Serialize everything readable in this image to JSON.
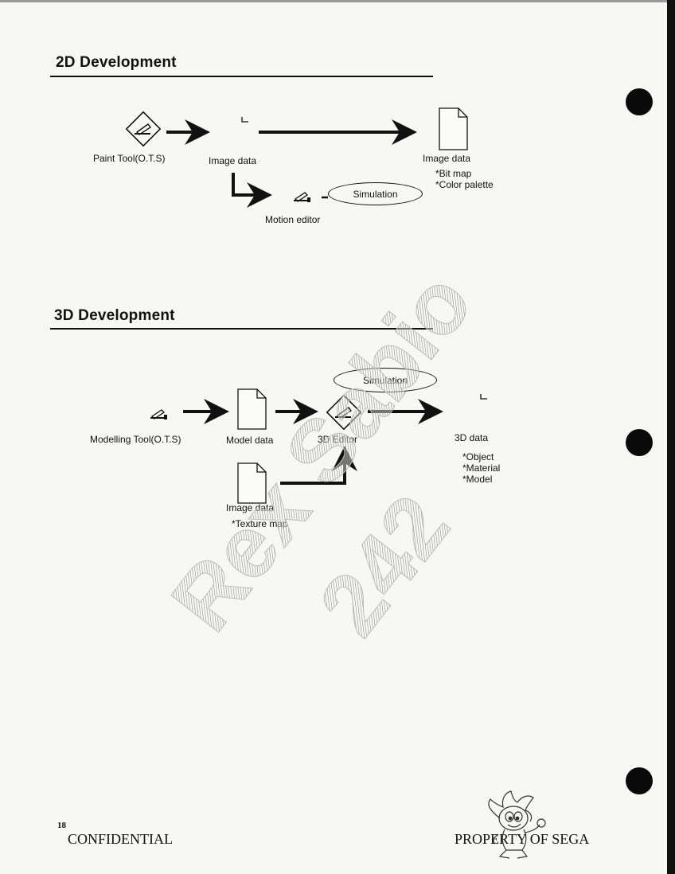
{
  "sections": {
    "dev2d": {
      "heading": "2D Development",
      "paint_tool": "Paint Tool(O.T.S)",
      "image_data_mid": "Image data",
      "image_data_out": "Image data",
      "image_data_notes": [
        "*Bit map",
        "*Color palette"
      ],
      "simulation": "Simulation",
      "motion_editor": "Motion editor"
    },
    "dev3d": {
      "heading": "3D Development",
      "modelling_tool": "Modelling Tool(O.T.S)",
      "model_data": "Model data",
      "editor": "3D Editor",
      "simulation": "Simulation",
      "data_3d": "3D data",
      "data_3d_notes": [
        "*Object",
        "*Material",
        "*Model"
      ],
      "image_data": "Image data",
      "image_data_note": "*Texture map"
    }
  },
  "watermark": {
    "line1": "Rex Sabio",
    "line2": "242"
  },
  "footer": {
    "page_number": "18",
    "left": "CONFIDENTIAL",
    "right": "PROPERTY OF SEGA"
  }
}
